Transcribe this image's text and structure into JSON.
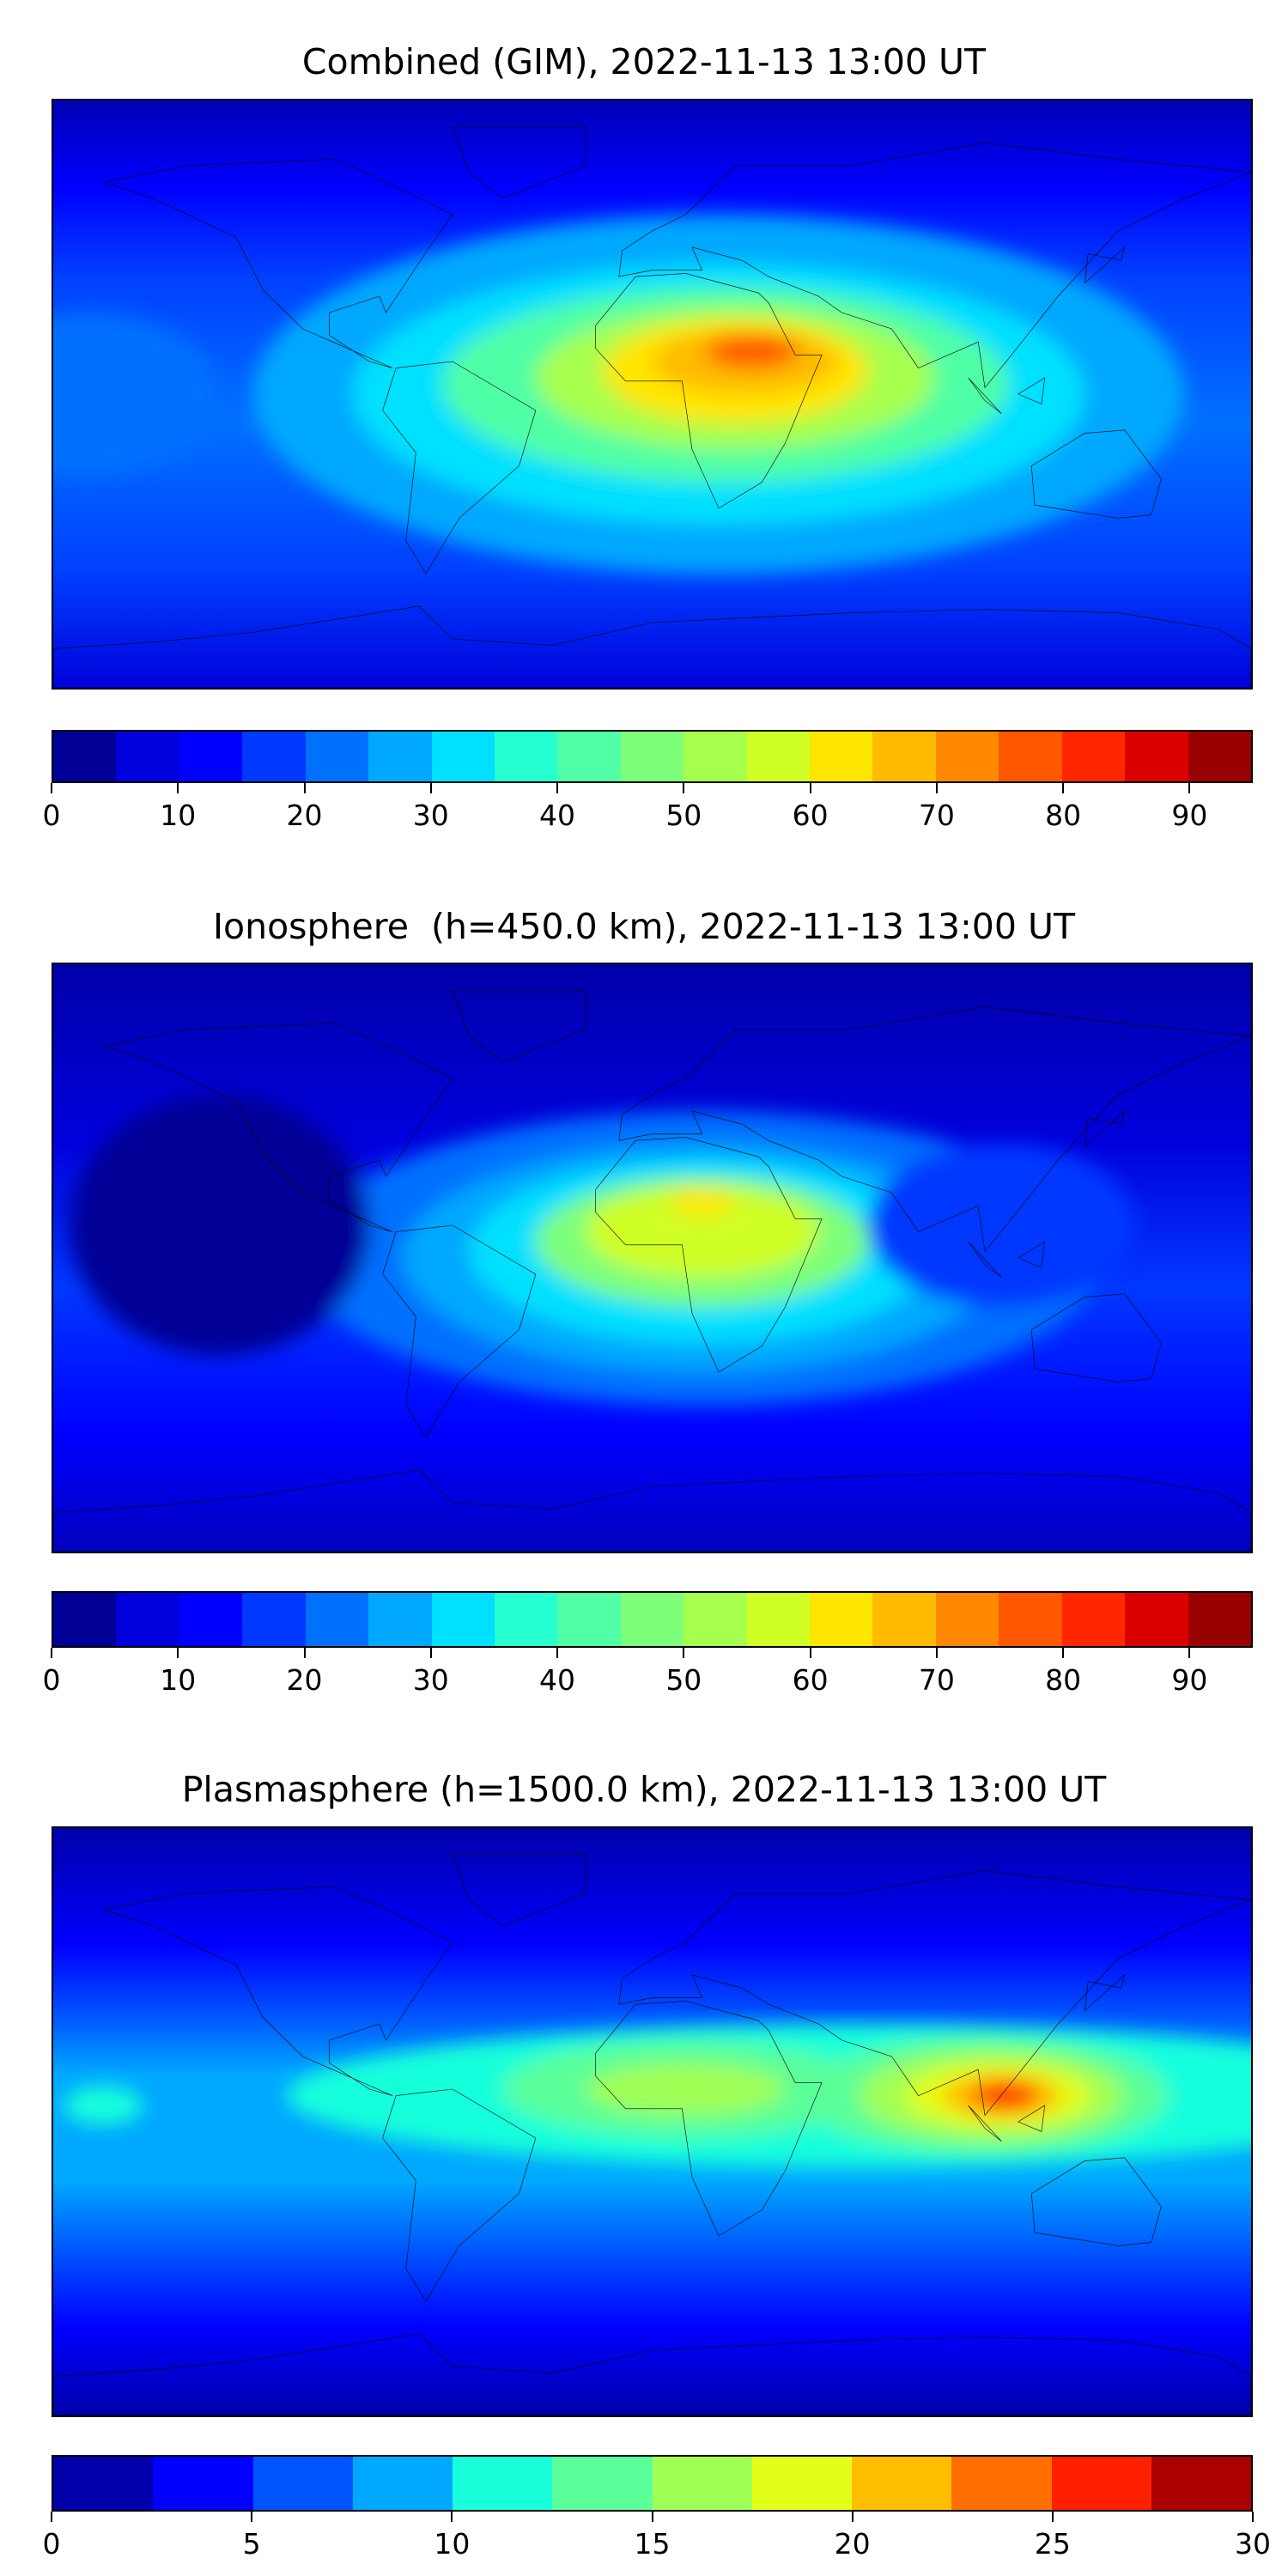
{
  "panels": [
    {
      "title": "Combined (GIM), 2022-11-13 13:00 UT",
      "colorbar": {
        "min": 0,
        "max": 95,
        "step": 5,
        "ticks": [
          "0",
          "10",
          "20",
          "30",
          "40",
          "50",
          "60",
          "70",
          "80",
          "90"
        ],
        "tick_values": [
          0,
          10,
          20,
          30,
          40,
          50,
          60,
          70,
          80,
          90
        ],
        "colors": [
          "#000096",
          "#0000dc",
          "#0000ff",
          "#0038ff",
          "#0070ff",
          "#00a8ff",
          "#00e0ff",
          "#26ffd0",
          "#50ffa6",
          "#7dff7a",
          "#a6ff4d",
          "#d0ff26",
          "#ffe600",
          "#ffbb00",
          "#ff8800",
          "#ff5800",
          "#ff2600",
          "#db0000",
          "#990000"
        ]
      }
    },
    {
      "title": "Ionosphere  (h=450.0 km), 2022-11-13 13:00 UT",
      "colorbar": {
        "min": 0,
        "max": 95,
        "step": 5,
        "ticks": [
          "0",
          "10",
          "20",
          "30",
          "40",
          "50",
          "60",
          "70",
          "80",
          "90"
        ],
        "tick_values": [
          0,
          10,
          20,
          30,
          40,
          50,
          60,
          70,
          80,
          90
        ],
        "colors": [
          "#000096",
          "#0000dc",
          "#0000ff",
          "#0038ff",
          "#0070ff",
          "#00a8ff",
          "#00e0ff",
          "#26ffd0",
          "#50ffa6",
          "#7dff7a",
          "#a6ff4d",
          "#d0ff26",
          "#ffe600",
          "#ffbb00",
          "#ff8800",
          "#ff5800",
          "#ff2600",
          "#db0000",
          "#990000"
        ]
      }
    },
    {
      "title": "Plasmasphere (h=1500.0 km), 2022-11-13 13:00 UT",
      "colorbar": {
        "min": 0,
        "max": 30,
        "step": 2.5,
        "ticks": [
          "0",
          "5",
          "10",
          "15",
          "20",
          "25",
          "30"
        ],
        "tick_values": [
          0,
          5,
          10,
          15,
          20,
          25,
          30
        ],
        "colors": [
          "#0000aa",
          "#0000ff",
          "#0055ff",
          "#00a8ff",
          "#19ffdc",
          "#5aff9a",
          "#a0ff55",
          "#e2ff19",
          "#ffbf00",
          "#ff6e00",
          "#ff2000",
          "#aa0000"
        ]
      }
    }
  ],
  "chart_data": {
    "type": "heatmap",
    "projection": "global lat/lon (-180..180, -90..90)",
    "panels": [
      {
        "title": "Combined (GIM), 2022-11-13 13:00 UT",
        "colorbar_range": [
          0,
          95
        ],
        "peak_region": "North/central Africa ~30E 13N",
        "peak_value_approx": 80
      },
      {
        "title": "Ionosphere  (h=450.0 km), 2022-11-13 13:00 UT",
        "colorbar_range": [
          0,
          95
        ],
        "peak_region": "North Africa ~15E 17N",
        "peak_value_approx": 60
      },
      {
        "title": "Plasmasphere (h=1500.0 km), 2022-11-13 13:00 UT",
        "colorbar_range": [
          0,
          30
        ],
        "peak_region": "Southeast Asia ~105E 8N",
        "peak_value_approx": 25
      }
    ]
  }
}
